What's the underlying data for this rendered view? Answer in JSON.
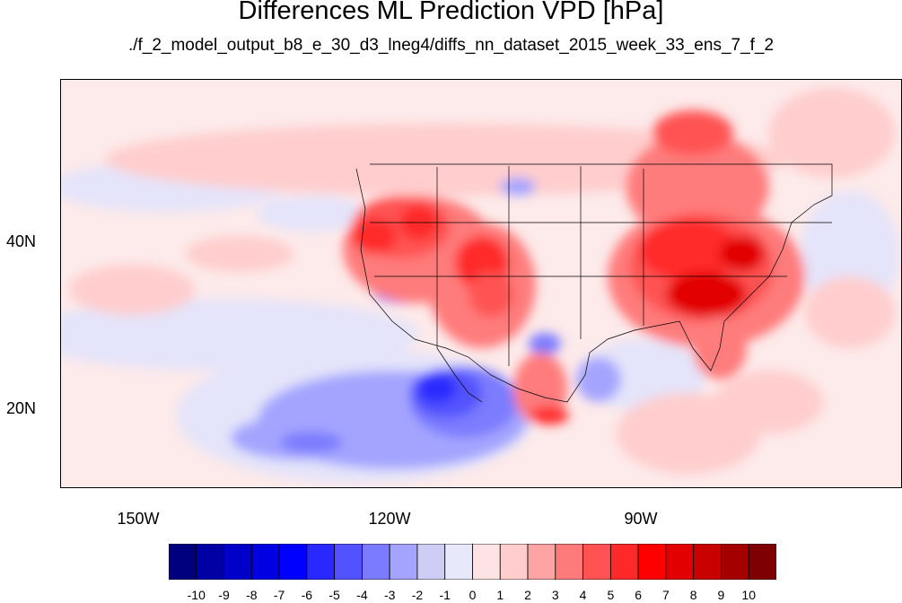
{
  "title": "Differences ML Prediction VPD [hPa]",
  "subtitle": "./f_2_model_output_b8_e_30_d3_lneg4/diffs_nn_dataset_2015_week_33_ens_7_f_2",
  "axes": {
    "lat_labels": [
      "40N",
      "20N"
    ],
    "lon_labels": [
      "150W",
      "120W",
      "90W"
    ]
  },
  "colorbar": {
    "labels": [
      "-10",
      "-9",
      "-8",
      "-7",
      "-6",
      "-5",
      "-4",
      "-3",
      "-2",
      "-1",
      "0",
      "1",
      "2",
      "3",
      "4",
      "5",
      "6",
      "7",
      "8",
      "9",
      "10"
    ],
    "colors": [
      "#00007f",
      "#0000a4",
      "#0000c8",
      "#0000e2",
      "#0000ff",
      "#2929ff",
      "#5252ff",
      "#7b7bff",
      "#a4a4ff",
      "#cdcdf6",
      "#e8e8fb",
      "#fde3e3",
      "#ffcdcd",
      "#ffa4a4",
      "#ff7b7b",
      "#ff5252",
      "#ff2929",
      "#ff0000",
      "#e20000",
      "#c80000",
      "#a40000",
      "#7f0000"
    ]
  }
}
